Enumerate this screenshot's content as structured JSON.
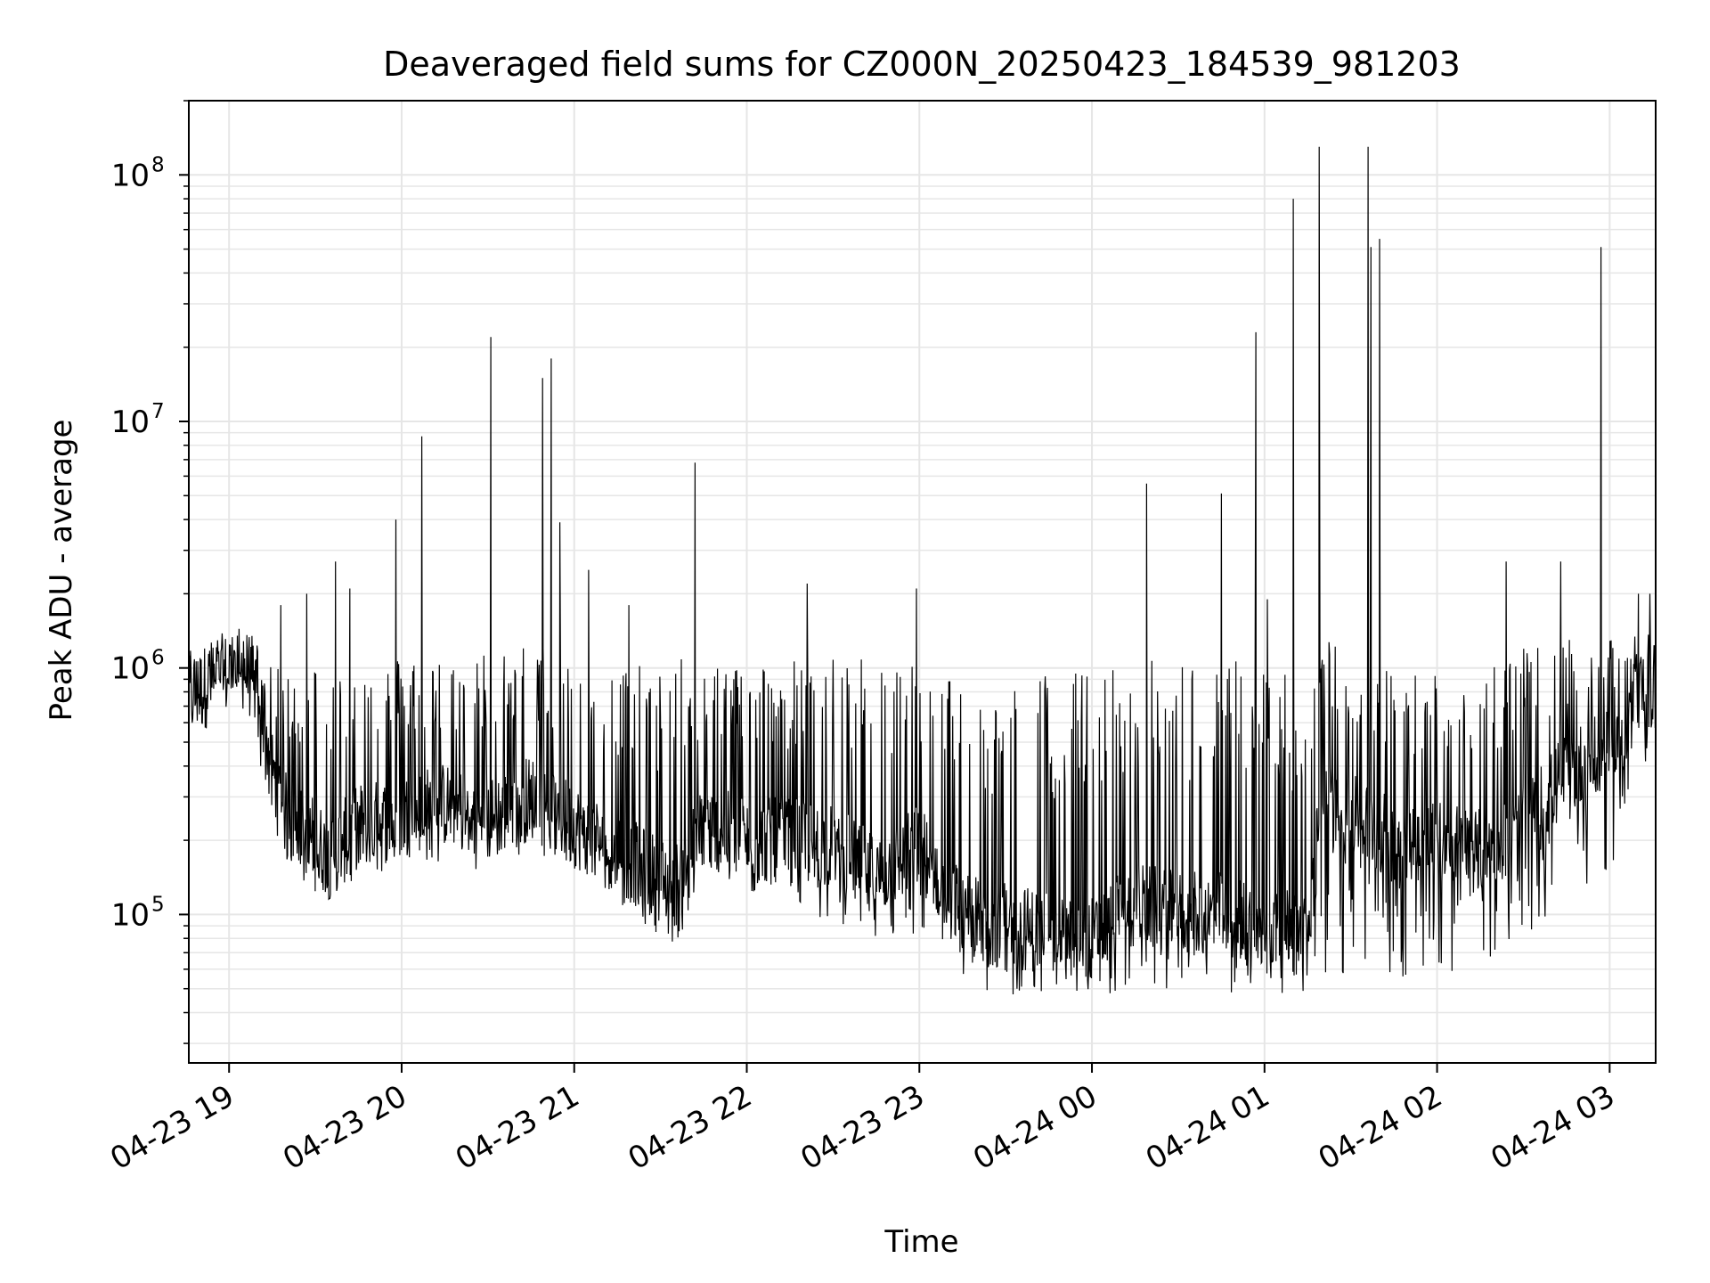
{
  "chart_data": {
    "type": "line",
    "title": "Deaveraged field sums for CZ000N_20250423_184539_981203",
    "xlabel": "Time",
    "ylabel": "Peak ADU - average",
    "yscale": "log",
    "ylim": [
      25000,
      200000000
    ],
    "xlim": [
      "2025-04-23 18:46",
      "2025-04-24 03:16"
    ],
    "grid": true,
    "legend": "none",
    "line_color": "#000000",
    "grid_color": "#e6e6e6",
    "x_ticks": [
      {
        "t": "2025-04-23 19:00",
        "label": "04-23 19"
      },
      {
        "t": "2025-04-23 20:00",
        "label": "04-23 20"
      },
      {
        "t": "2025-04-23 21:00",
        "label": "04-23 21"
      },
      {
        "t": "2025-04-23 22:00",
        "label": "04-23 22"
      },
      {
        "t": "2025-04-23 23:00",
        "label": "04-23 23"
      },
      {
        "t": "2025-04-24 00:00",
        "label": "04-24 00"
      },
      {
        "t": "2025-04-24 01:00",
        "label": "04-24 01"
      },
      {
        "t": "2025-04-24 02:00",
        "label": "04-24 02"
      },
      {
        "t": "2025-04-24 03:00",
        "label": "04-24 03"
      }
    ],
    "y_ticks": [
      {
        "value": 100000,
        "base": "10",
        "exp": "5"
      },
      {
        "value": 1000000,
        "base": "10",
        "exp": "6"
      },
      {
        "value": 10000000,
        "base": "10",
        "exp": "7"
      },
      {
        "value": 100000000,
        "base": "10",
        "exp": "8"
      }
    ],
    "series": [
      {
        "x": [
          "2025-04-23 18:46",
          "2025-04-23 18:55",
          "2025-04-23 19:05",
          "2025-04-23 19:10",
          "2025-04-23 19:15",
          "2025-04-23 19:20",
          "2025-04-23 19:30",
          "2025-04-23 19:35",
          "2025-04-23 19:45",
          "2025-04-23 19:55",
          "2025-04-23 20:05",
          "2025-04-23 20:15",
          "2025-04-23 20:30",
          "2025-04-23 20:45",
          "2025-04-23 21:00",
          "2025-04-23 21:15",
          "2025-04-23 21:25",
          "2025-04-23 21:35",
          "2025-04-23 21:45",
          "2025-04-23 22:00",
          "2025-04-23 22:15",
          "2025-04-23 22:30",
          "2025-04-23 22:45",
          "2025-04-23 23:00",
          "2025-04-23 23:15",
          "2025-04-23 23:30",
          "2025-04-23 23:45",
          "2025-04-24 00:00",
          "2025-04-24 00:15",
          "2025-04-24 00:30",
          "2025-04-24 00:45",
          "2025-04-24 01:00",
          "2025-04-24 01:15",
          "2025-04-24 01:20",
          "2025-04-24 01:30",
          "2025-04-24 01:45",
          "2025-04-24 02:00",
          "2025-04-24 02:15",
          "2025-04-24 02:30",
          "2025-04-24 02:45",
          "2025-04-24 03:00",
          "2025-04-24 03:16"
        ],
        "values": [
          750000,
          900000,
          1000000,
          850000,
          380000,
          250000,
          200000,
          170000,
          230000,
          240000,
          260000,
          280000,
          240000,
          300000,
          230000,
          180000,
          150000,
          130000,
          230000,
          200000,
          200000,
          190000,
          140000,
          190000,
          100000,
          90000,
          85000,
          80000,
          110000,
          100000,
          100000,
          90000,
          80000,
          300000,
          250000,
          200000,
          200000,
          180000,
          220000,
          380000,
          450000,
          900000
        ],
        "envelope_low": [
          650000,
          800000,
          850000,
          500000,
          250000,
          150000,
          120000,
          100000,
          140000,
          150000,
          150000,
          160000,
          150000,
          180000,
          150000,
          110000,
          90000,
          75000,
          120000,
          120000,
          110000,
          90000,
          70000,
          70000,
          50000,
          45000,
          45000,
          45000,
          50000,
          50000,
          45000,
          50000,
          45000,
          55000,
          55000,
          55000,
          55000,
          60000,
          80000,
          110000,
          150000,
          500000
        ],
        "envelope_high": [
          1200000,
          1300000,
          1400000,
          1100000,
          1000000,
          1000000,
          1100000,
          1000000,
          1100000,
          1100000,
          1200000,
          1100000,
          1200000,
          1300000,
          1100000,
          1100000,
          1000000,
          1100000,
          1100000,
          1100000,
          1100000,
          1100000,
          1100000,
          1100000,
          900000,
          900000,
          1000000,
          1000000,
          1100000,
          1100000,
          1100000,
          1100000,
          1100000,
          1300000,
          1300000,
          1000000,
          1000000,
          1100000,
          1200000,
          1300000,
          1300000,
          1400000
        ],
        "spikes": [
          {
            "t": "2025-04-23 19:11",
            "value": 400000
          },
          {
            "t": "2025-04-23 19:18",
            "value": 1800000
          },
          {
            "t": "2025-04-23 19:27",
            "value": 2000000
          },
          {
            "t": "2025-04-23 19:37",
            "value": 2700000
          },
          {
            "t": "2025-04-23 19:42",
            "value": 2100000
          },
          {
            "t": "2025-04-23 19:58",
            "value": 4000000
          },
          {
            "t": "2025-04-23 20:07",
            "value": 8700000
          },
          {
            "t": "2025-04-23 20:31",
            "value": 22000000
          },
          {
            "t": "2025-04-23 20:49",
            "value": 15000000
          },
          {
            "t": "2025-04-23 20:52",
            "value": 18000000
          },
          {
            "t": "2025-04-23 20:55",
            "value": 3900000
          },
          {
            "t": "2025-04-23 21:05",
            "value": 2500000
          },
          {
            "t": "2025-04-23 21:19",
            "value": 1800000
          },
          {
            "t": "2025-04-23 21:42",
            "value": 6800000
          },
          {
            "t": "2025-04-23 22:21",
            "value": 2200000
          },
          {
            "t": "2025-04-23 22:59",
            "value": 2100000
          },
          {
            "t": "2025-04-24 00:19",
            "value": 5600000
          },
          {
            "t": "2025-04-24 00:45",
            "value": 5100000
          },
          {
            "t": "2025-04-24 00:57",
            "value": 23000000
          },
          {
            "t": "2025-04-24 01:01",
            "value": 1900000
          },
          {
            "t": "2025-04-24 01:10",
            "value": 80000000
          },
          {
            "t": "2025-04-24 01:19",
            "value": 130000000
          },
          {
            "t": "2025-04-24 01:36",
            "value": 130000000
          },
          {
            "t": "2025-04-24 01:37",
            "value": 51000000
          },
          {
            "t": "2025-04-24 01:40",
            "value": 55000000
          },
          {
            "t": "2025-04-24 02:24",
            "value": 2700000
          },
          {
            "t": "2025-04-24 02:43",
            "value": 2700000
          },
          {
            "t": "2025-04-24 02:57",
            "value": 51000000
          },
          {
            "t": "2025-04-24 03:10",
            "value": 2000000
          },
          {
            "t": "2025-04-24 03:14",
            "value": 2000000
          }
        ]
      }
    ]
  }
}
